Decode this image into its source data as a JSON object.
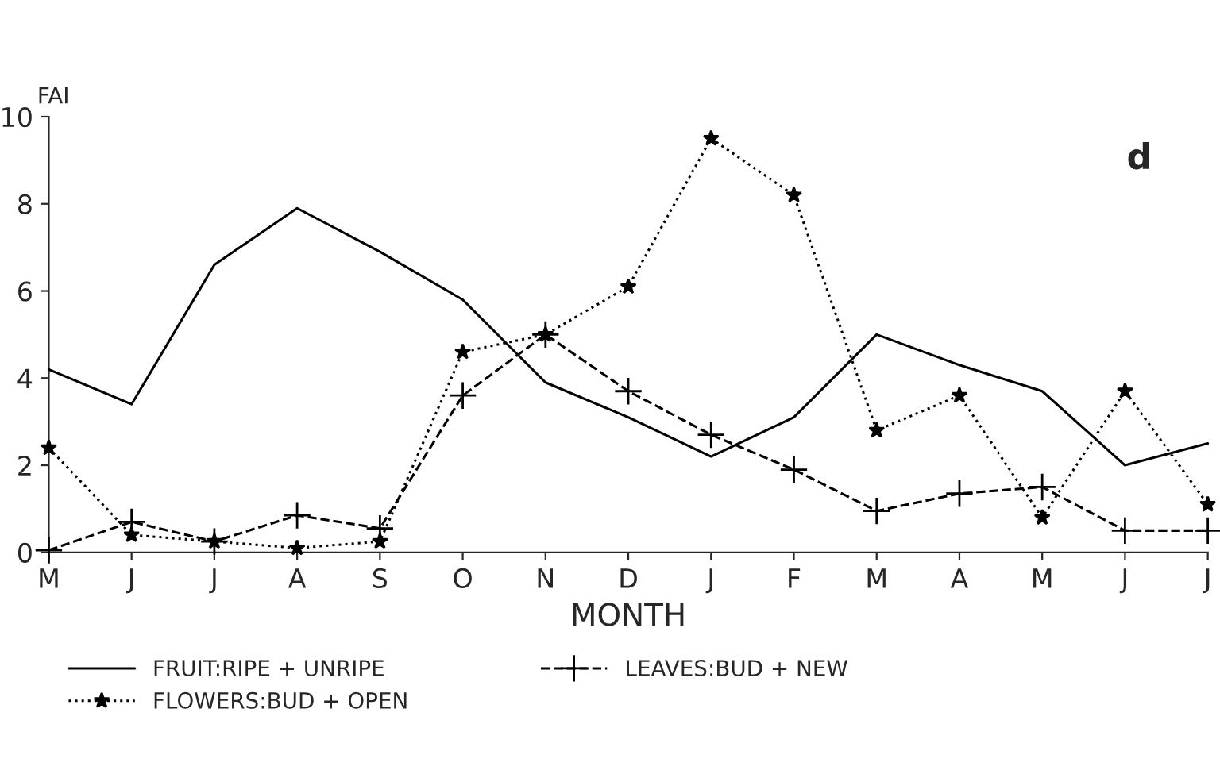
{
  "chart_data": {
    "type": "line",
    "xlabel": "MONTH",
    "ylabel": "FAI",
    "categories": [
      "M",
      "J",
      "J",
      "A",
      "S",
      "O",
      "N",
      "D",
      "J",
      "F",
      "M",
      "A",
      "M",
      "J",
      "J"
    ],
    "series": [
      {
        "name": "FRUIT:RIPE + UNRIPE",
        "color": "#000000",
        "marker": "none",
        "line_style": "solid",
        "values": [
          4.2,
          3.4,
          6.6,
          7.9,
          6.9,
          5.8,
          3.9,
          3.1,
          2.2,
          3.1,
          5.0,
          4.3,
          3.7,
          2.0,
          2.5
        ]
      },
      {
        "name": "FLOWERS:BUD + OPEN",
        "color": "#000000",
        "marker": "star",
        "line_style": "dotted",
        "values": [
          2.4,
          0.4,
          0.25,
          0.1,
          0.25,
          4.6,
          5.0,
          6.1,
          9.5,
          8.2,
          2.8,
          3.6,
          0.8,
          3.7,
          1.1
        ]
      },
      {
        "name": "LEAVES:BUD + NEW",
        "color": "#000000",
        "marker": "cross",
        "line_style": "dashed",
        "values": [
          0.05,
          0.7,
          0.25,
          0.85,
          0.55,
          3.6,
          5.0,
          3.7,
          2.7,
          1.9,
          0.95,
          1.35,
          1.5,
          0.5,
          0.5
        ]
      }
    ],
    "ylim": [
      0,
      10
    ],
    "yticks": [
      0,
      2,
      4,
      6,
      8,
      10
    ],
    "grid": false,
    "legend": "bottom",
    "annotations": [
      "d"
    ]
  }
}
